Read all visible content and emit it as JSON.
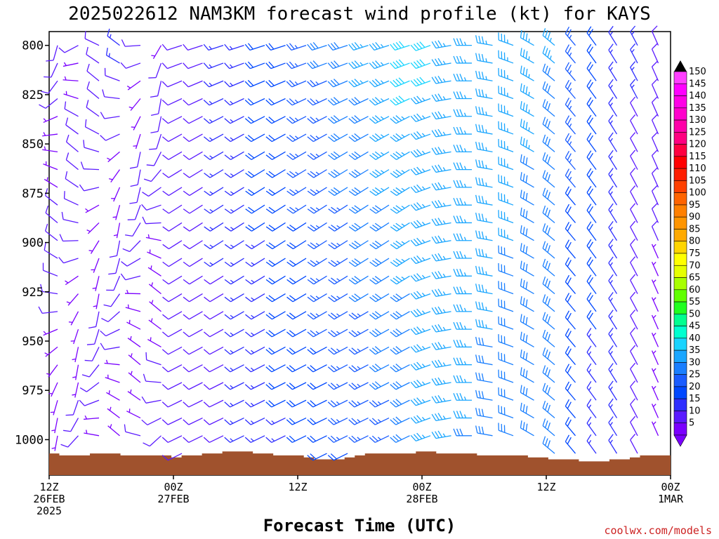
{
  "chart_data": {
    "type": "wind_barbs",
    "title": "2025022612 NAM3KM forecast wind profile (kt) for KAYS",
    "xlabel": "Forecast Time (UTC)",
    "ylabel": "",
    "y_ticks": [
      "800",
      "825",
      "850",
      "875",
      "900",
      "925",
      "950",
      "975",
      "1000"
    ],
    "y_values": [
      800,
      825,
      850,
      875,
      900,
      925,
      950,
      975,
      1000
    ],
    "ylim": [
      1018,
      793
    ],
    "x_ticks": [
      {
        "hour": 0,
        "lines": [
          "12Z",
          "26FEB",
          "2025"
        ]
      },
      {
        "hour": 12,
        "lines": [
          "00Z",
          "27FEB"
        ]
      },
      {
        "hour": 24,
        "lines": [
          "12Z"
        ]
      },
      {
        "hour": 36,
        "lines": [
          "00Z",
          "28FEB"
        ]
      },
      {
        "hour": 48,
        "lines": [
          "12Z"
        ]
      },
      {
        "hour": 60,
        "lines": [
          "00Z",
          "1MAR"
        ]
      }
    ],
    "xlim": [
      0,
      60
    ],
    "colorbar": {
      "label_units": "kt",
      "ticks": [
        "150",
        "145",
        "140",
        "135",
        "130",
        "125",
        "120",
        "115",
        "110",
        "105",
        "100",
        "95",
        "90",
        "85",
        "80",
        "75",
        "70",
        "65",
        "60",
        "55",
        "50",
        "45",
        "40",
        "35",
        "30",
        "25",
        "20",
        "15",
        "10",
        "5"
      ]
    },
    "surface_pressure": [
      1007,
      1008,
      1008,
      1008,
      1007,
      1007,
      1007,
      1008,
      1008,
      1008,
      1008,
      1008,
      1009,
      1008,
      1008,
      1007,
      1007,
      1006,
      1006,
      1006,
      1007,
      1007,
      1008,
      1008,
      1008,
      1009,
      1010,
      1010,
      1010,
      1009,
      1008,
      1007,
      1007,
      1007,
      1007,
      1007,
      1006,
      1006,
      1007,
      1007,
      1007,
      1007,
      1008,
      1008,
      1008,
      1008,
      1008,
      1009,
      1009,
      1010,
      1010,
      1010,
      1011,
      1011,
      1011,
      1010,
      1010,
      1009,
      1008,
      1008,
      1008
    ],
    "wind_summary": "Weak variable winds early; westerly-southwesterly strengthening to 30-40 kt at 800-900 hPa around 00Z 28FEB; northwesterly 25-35 kt late 28FEB; weakening to 5-10 kt by 1MAR"
  },
  "footer": {
    "credit": "coolwx.com/models"
  },
  "colors": {
    "ground": "#a0522d",
    "scale": [
      "#7a00ff",
      "#5a1aff",
      "#2e2eff",
      "#0048ff",
      "#1a5cff",
      "#1a7fff",
      "#1aa6ff",
      "#1ad4ff",
      "#00ffd0",
      "#00ff90",
      "#20ff20",
      "#60ff00",
      "#a8ff00",
      "#e6ff00",
      "#ffff00",
      "#ffd500",
      "#ffaa00",
      "#ff9500",
      "#ff8000",
      "#ff6400",
      "#ff4000",
      "#ff1e00",
      "#ff0000",
      "#ff0040",
      "#ff0080",
      "#ff00a8",
      "#ff00cc",
      "#ff00e6",
      "#ff00ff",
      "#ff40ff"
    ]
  }
}
